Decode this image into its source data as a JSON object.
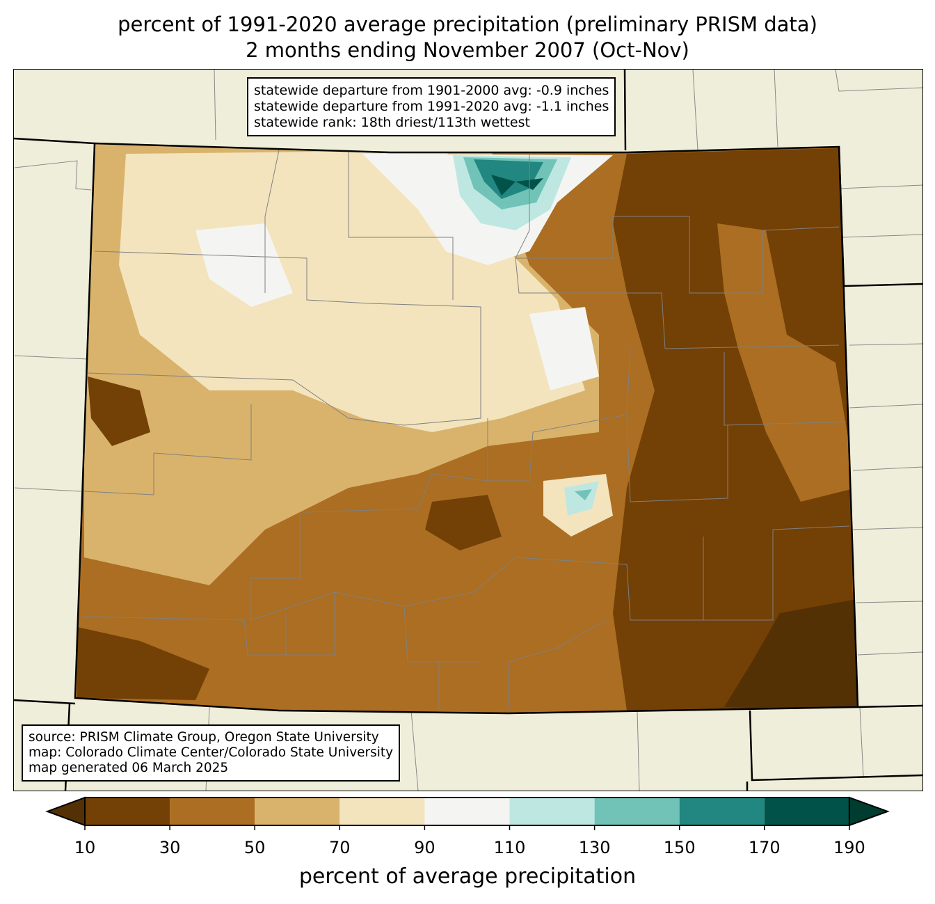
{
  "title": {
    "line1": "percent of 1991-2020 average precipitation (preliminary PRISM data)",
    "line2": "2 months ending November 2007 (Oct-Nov)"
  },
  "stats": [
    "statewide departure from 1901-2000 avg: -0.9 inches",
    "statewide departure from 1991-2020 avg: -1.1 inches",
    "statewide rank: 18th driest/113th wettest"
  ],
  "source": [
    "source: PRISM Climate Group, Oregon State University",
    "map: Colorado Climate Center/Colorado State University",
    "map generated 06 March 2025"
  ],
  "colorbar": {
    "label": "percent of average precipitation",
    "ticks": [
      "10",
      "30",
      "50",
      "70",
      "90",
      "110",
      "130",
      "150",
      "170",
      "190"
    ],
    "colors": [
      "#734006",
      "#ab6e22",
      "#d9b36c",
      "#f3e4bd",
      "#f4f5f3",
      "#bfe7e2",
      "#71c3b7",
      "#218780",
      "#01534a"
    ],
    "under": "#543005",
    "over": "#003c30"
  },
  "map_colors": {
    "land": "#efeedb",
    "dry1": "#543005",
    "dry2": "#734006",
    "dry3": "#ab6e22",
    "dry4": "#d9b36c",
    "dry5": "#f3e4bd",
    "norm": "#f4f5f3",
    "wet1": "#bfe7e2",
    "wet2": "#71c3b7",
    "wet3": "#218780",
    "wet4": "#01534a"
  }
}
